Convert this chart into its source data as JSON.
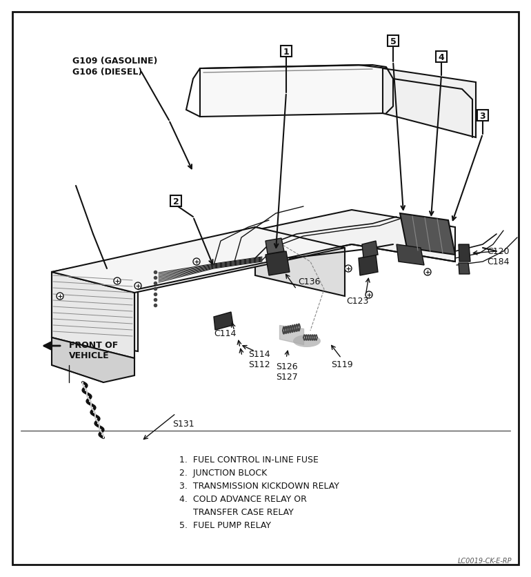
{
  "bg_color": "#ffffff",
  "border_color": "#111111",
  "legend_items": [
    "1.  FUEL CONTROL IN-LINE FUSE",
    "2.  JUNCTION BLOCK",
    "3.  TRANSMISSION KICKDOWN RELAY",
    "4.  COLD ADVANCE RELAY OR",
    "     TRANSFER CASE RELAY",
    "5.  FUEL PUMP RELAY"
  ],
  "watermark": "LC0019-CK-E-RP"
}
